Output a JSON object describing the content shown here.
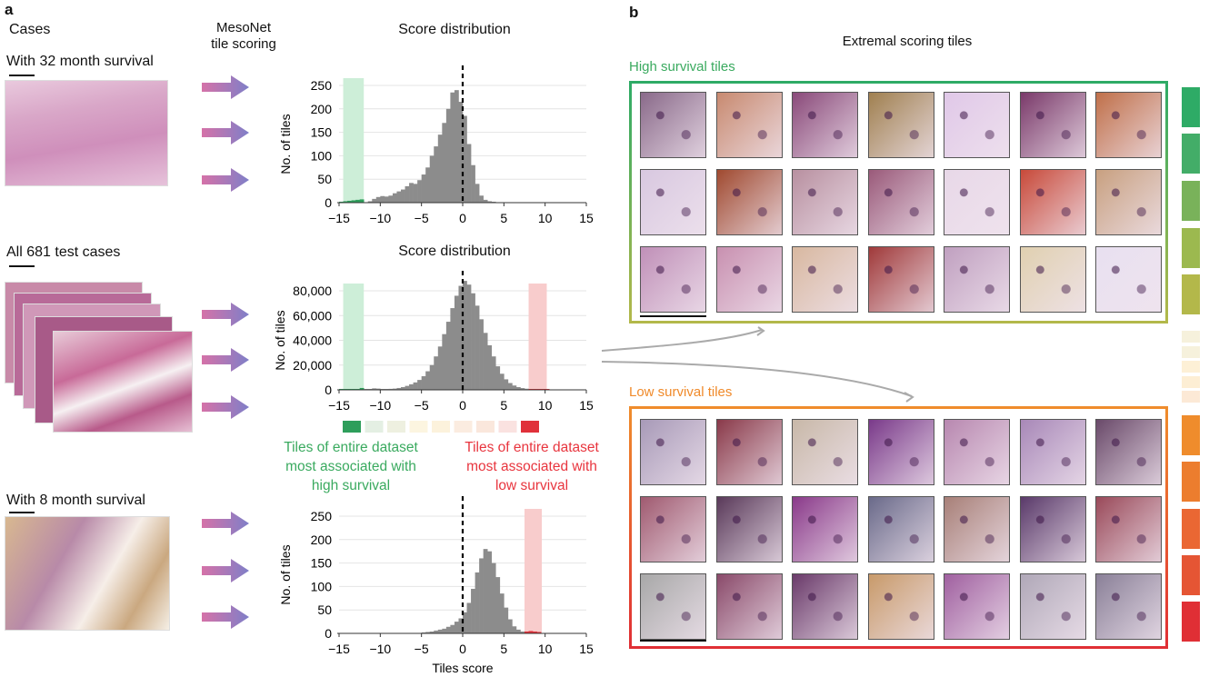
{
  "panel_a": {
    "label": "a",
    "cases_header": "Cases",
    "scoring_header_line1": "MesoNet",
    "scoring_header_line2": "tile scoring",
    "case_top": "With 32 month survival",
    "case_mid": "All 681 test cases",
    "case_bottom": "With 8 month survival",
    "dist_title_top": "Score distribution",
    "dist_title_mid": "Score distribution",
    "high_legend": [
      "Tiles of entire dataset",
      "most associated with",
      "high survival"
    ],
    "low_legend": [
      "Tiles of entire dataset",
      "most associated with",
      "low survival"
    ],
    "strip_colors": [
      "#2e9e5b",
      "#e4efe3",
      "#eef0e0",
      "#fcf5e0",
      "#fcf2dc",
      "#fbece0",
      "#fae7dc",
      "#fae2e0",
      "#e0313a"
    ]
  },
  "panel_b": {
    "label": "b",
    "title": "Extremal scoring tiles",
    "high_title": "High survival tiles",
    "low_title": "Low survival tiles",
    "colorbar": [
      "#2eab66",
      "#43ad68",
      "#79b25a",
      "#9cb94f",
      "#b3b84a",
      "#f6f1dc",
      "#f6f1dc",
      "#fdf0d6",
      "#fdeed4",
      "#fce9d6",
      "#ef8c2c",
      "#ec7d2e",
      "#ea6733",
      "#e55534",
      "#e02f35"
    ],
    "high_tiles": [
      "#8a6a8a",
      "#c88a70",
      "#8a4a7a",
      "#a08050",
      "#e0c8e8",
      "#7a3a6a",
      "#c0704a",
      "#d8c8e0",
      "#a04a30",
      "#b890a0",
      "#9a5a7a",
      "#e8d8e8",
      "#c84a3a",
      "#c8a080",
      "#c090b8",
      "#c890b0",
      "#d8b8a0",
      "#a03a3a",
      "#c0a0c0",
      "#e0d0b0",
      "#e8e0f0"
    ],
    "low_tiles": [
      "#a89ab8",
      "#8a3a4a",
      "#c8b8a8",
      "#7a3a8a",
      "#b888b0",
      "#a888b8",
      "#6a4a6a",
      "#a05a70",
      "#5a3a5a",
      "#8a3a8a",
      "#6a6a8a",
      "#a88078",
      "#5a3a6a",
      "#9a4a5a",
      "#a8a8a8",
      "#8a4a6a",
      "#6a3a6a",
      "#c89a6a",
      "#a060a0",
      "#b0a8b8",
      "#8a8098"
    ]
  },
  "chart_data": [
    {
      "type": "bar",
      "title": "Score distribution",
      "xlabel": "",
      "ylabel": "No. of tiles",
      "xlim": [
        -15,
        15
      ],
      "ylim": [
        0,
        250
      ],
      "xticks": [
        "−15",
        "−10",
        "−5",
        "0",
        "5",
        "10",
        "15"
      ],
      "xtick_values": [
        -15,
        -10,
        -5,
        0,
        5,
        10,
        15
      ],
      "yticks": [
        "0",
        "50",
        "100",
        "150",
        "200",
        "250"
      ],
      "ytick_values": [
        0,
        50,
        100,
        150,
        200,
        250
      ],
      "bin_start": -15,
      "bin_width": 0.5,
      "values": [
        2,
        3,
        4,
        5,
        6,
        7,
        0,
        3,
        8,
        12,
        14,
        13,
        15,
        20,
        24,
        28,
        35,
        42,
        40,
        48,
        60,
        75,
        100,
        120,
        145,
        170,
        200,
        235,
        240,
        215,
        185,
        125,
        80,
        40,
        15,
        6,
        3,
        2,
        0,
        0,
        0,
        0,
        0,
        0,
        0,
        0,
        0,
        0,
        0,
        0,
        0,
        0,
        0,
        0,
        0,
        0,
        0,
        0,
        0,
        0
      ],
      "high_band": [
        -14.5,
        -12
      ],
      "low_band": null,
      "dashed_line_x": 0
    },
    {
      "type": "bar",
      "title": "Score distribution",
      "xlabel": "",
      "ylabel": "No. of tiles",
      "xlim": [
        -15,
        15
      ],
      "ylim": [
        0,
        80000
      ],
      "xticks": [
        "−15",
        "−10",
        "−5",
        "0",
        "5",
        "10",
        "15"
      ],
      "xtick_values": [
        -15,
        -10,
        -5,
        0,
        5,
        10,
        15
      ],
      "yticks": [
        "0",
        "20,000",
        "40,000",
        "60,000",
        "80,000"
      ],
      "ytick_values": [
        0,
        20000,
        40000,
        60000,
        80000
      ],
      "bin_start": -15,
      "bin_width": 0.5,
      "values": [
        400,
        400,
        400,
        400,
        400,
        1500,
        600,
        600,
        1200,
        1000,
        600,
        600,
        800,
        1000,
        1500,
        2200,
        3200,
        4500,
        6000,
        8000,
        11000,
        15000,
        20000,
        27000,
        35000,
        45000,
        55000,
        66000,
        76000,
        84000,
        88000,
        85000,
        78000,
        68000,
        57000,
        46000,
        36000,
        27000,
        19000,
        13000,
        8500,
        5500,
        3500,
        2200,
        1400,
        900,
        600,
        500,
        400,
        300,
        200,
        0,
        0,
        0,
        0,
        0,
        0,
        0,
        0,
        0
      ],
      "high_band": [
        -14.5,
        -12
      ],
      "low_band": [
        8,
        10.2
      ],
      "dashed_line_x": 0
    },
    {
      "type": "bar",
      "title": "",
      "xlabel": "Tiles score",
      "ylabel": "No. of tiles",
      "xlim": [
        -15,
        15
      ],
      "ylim": [
        0,
        250
      ],
      "xticks": [
        "−15",
        "−10",
        "−5",
        "0",
        "5",
        "10",
        "15"
      ],
      "xtick_values": [
        -15,
        -10,
        -5,
        0,
        5,
        10,
        15
      ],
      "yticks": [
        "0",
        "50",
        "100",
        "150",
        "200",
        "250"
      ],
      "ytick_values": [
        0,
        50,
        100,
        150,
        200,
        250
      ],
      "bin_start": -15,
      "bin_width": 0.5,
      "values": [
        0,
        0,
        0,
        0,
        0,
        0,
        0,
        0,
        0,
        0,
        0,
        0,
        0,
        0,
        0,
        0,
        0,
        0,
        0,
        0,
        2,
        3,
        4,
        6,
        8,
        10,
        14,
        18,
        25,
        32,
        45,
        65,
        95,
        130,
        160,
        180,
        175,
        150,
        120,
        85,
        55,
        30,
        15,
        8,
        4,
        4,
        5,
        4,
        3,
        0,
        0,
        0,
        0,
        0,
        0,
        0,
        0,
        0,
        0,
        0
      ],
      "high_band": null,
      "low_band": [
        7.5,
        9.6
      ],
      "dashed_line_x": 0
    }
  ],
  "colors": {
    "gray": "#8c8c8c",
    "green": "#2e9e5b",
    "red": "#e0313a",
    "green_band": "#cdeed8",
    "red_band": "#f8cccc",
    "high_text": "#3aaa5f",
    "low_text": "#e8353e",
    "low_title": "#f08a2a"
  }
}
